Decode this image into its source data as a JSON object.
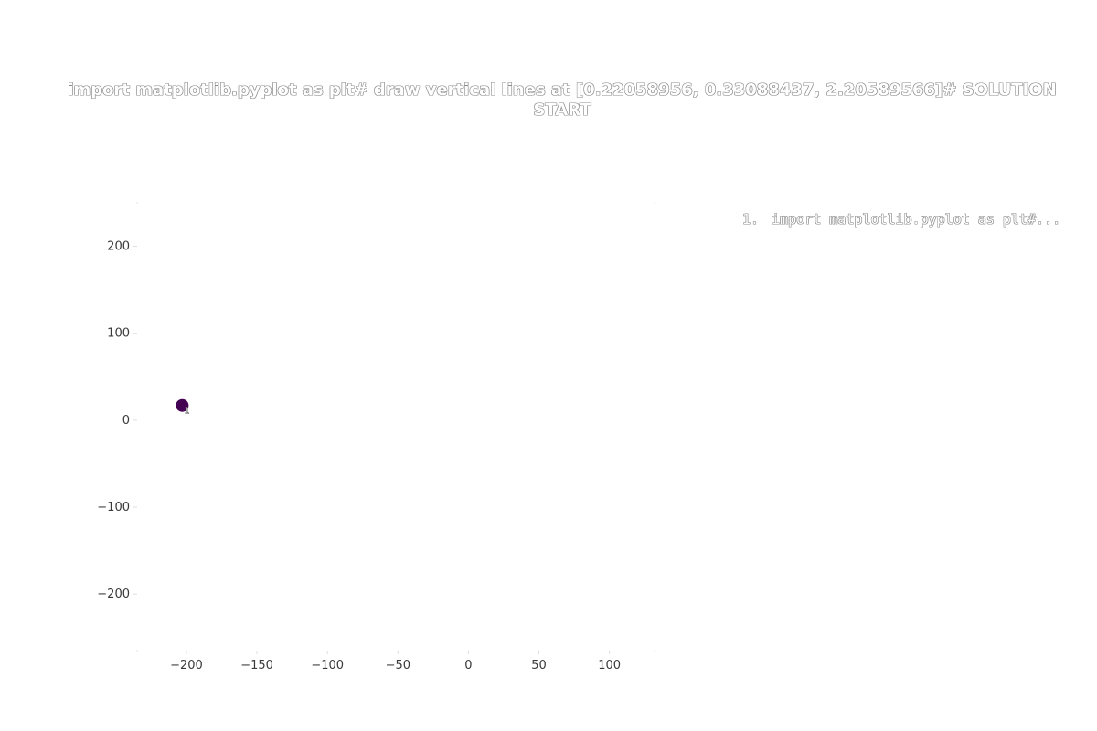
{
  "chart_data": {
    "type": "scatter",
    "title": "import matplotlib.pyplot as plt# draw vertical lines at [0.22058956, 0.33088437, 2.20589566]# SOLUTION START",
    "xlabel": "",
    "ylabel": "",
    "xlim": [
      -235,
      132
    ],
    "ylim": [
      -265,
      250
    ],
    "xticks": [
      -200,
      -150,
      -100,
      -50,
      0,
      50,
      100
    ],
    "xtick_labels": [
      "−200",
      "−150",
      "−100",
      "−50",
      "0",
      "50",
      "100"
    ],
    "yticks": [
      200,
      100,
      0,
      -100,
      -200
    ],
    "ytick_labels": [
      "200",
      "100",
      "0",
      "−100",
      "−200"
    ],
    "grid": false,
    "legend_position": "right",
    "points": [
      {
        "x": -203,
        "y": 17,
        "label": "1",
        "color": "#440154"
      }
    ],
    "legend": [
      {
        "number": "1.",
        "text": "import matplotlib.pyplot as plt#..."
      }
    ]
  }
}
